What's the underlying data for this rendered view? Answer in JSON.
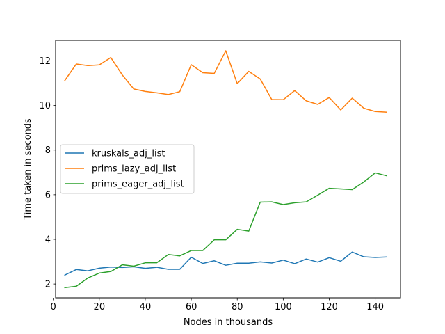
{
  "chart_data": {
    "type": "line",
    "xlabel": "Nodes in thousands",
    "ylabel": "Time taken in seconds",
    "xlim": [
      1,
      151
    ],
    "ylim": [
      1.38,
      12.92
    ],
    "xticks": [
      0,
      20,
      40,
      60,
      80,
      100,
      120,
      140
    ],
    "yticks": [
      2,
      4,
      6,
      8,
      10,
      12
    ],
    "grid": false,
    "legend_position": "center-left",
    "x": [
      5,
      10,
      15,
      20,
      25,
      30,
      35,
      40,
      45,
      50,
      55,
      60,
      65,
      70,
      75,
      80,
      85,
      90,
      95,
      100,
      105,
      110,
      115,
      120,
      125,
      130,
      135,
      140,
      145
    ],
    "series": [
      {
        "name": "kruskals_adj_list",
        "color": "#1f77b4",
        "values": [
          2.4,
          2.65,
          2.59,
          2.71,
          2.76,
          2.74,
          2.77,
          2.7,
          2.75,
          2.66,
          2.66,
          3.2,
          2.92,
          3.04,
          2.84,
          2.93,
          2.93,
          2.99,
          2.94,
          3.07,
          2.91,
          3.12,
          2.98,
          3.18,
          3.02,
          3.43,
          3.22,
          3.19,
          3.21
        ]
      },
      {
        "name": "prims_lazy_adj_list",
        "color": "#ff7f0e",
        "values": [
          11.12,
          11.86,
          11.79,
          11.82,
          12.15,
          11.37,
          10.74,
          10.63,
          10.57,
          10.49,
          10.62,
          11.83,
          11.47,
          11.44,
          12.45,
          10.98,
          11.53,
          11.19,
          10.27,
          10.26,
          10.67,
          10.21,
          10.05,
          10.36,
          9.8,
          10.33,
          9.88,
          9.73,
          9.7
        ]
      },
      {
        "name": "prims_eager_adj_list",
        "color": "#2ca02c",
        "values": [
          1.84,
          1.9,
          2.27,
          2.49,
          2.56,
          2.86,
          2.8,
          2.95,
          2.95,
          3.32,
          3.26,
          3.5,
          3.5,
          3.98,
          3.98,
          4.45,
          4.37,
          5.67,
          5.68,
          5.56,
          5.64,
          5.68,
          5.98,
          6.29,
          6.26,
          6.23,
          6.57,
          6.98,
          6.85
        ]
      }
    ]
  }
}
